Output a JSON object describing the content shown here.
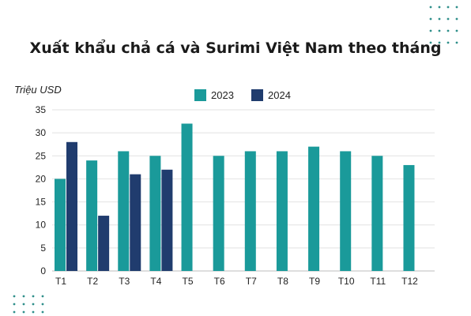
{
  "chart_data": {
    "type": "bar",
    "title": "Xuất khẩu chả cá và Surimi Việt Nam theo tháng",
    "ylabel": "Triệu USD",
    "xlabel": "",
    "ylim": [
      0,
      35
    ],
    "yticks": [
      0,
      5,
      10,
      15,
      20,
      25,
      30,
      35
    ],
    "grid": true,
    "legend_position": "top",
    "categories": [
      "T1",
      "T2",
      "T3",
      "T4",
      "T5",
      "T6",
      "T7",
      "T8",
      "T9",
      "T10",
      "T11",
      "T12"
    ],
    "series": [
      {
        "name": "2023",
        "color": "#1a9a9a",
        "values": [
          20,
          24,
          26,
          25,
          32,
          25,
          26,
          26,
          27,
          26,
          25,
          23
        ]
      },
      {
        "name": "2024",
        "color": "#203c6e",
        "values": [
          28,
          12,
          21,
          22,
          null,
          null,
          null,
          null,
          null,
          null,
          null,
          null
        ]
      }
    ]
  }
}
